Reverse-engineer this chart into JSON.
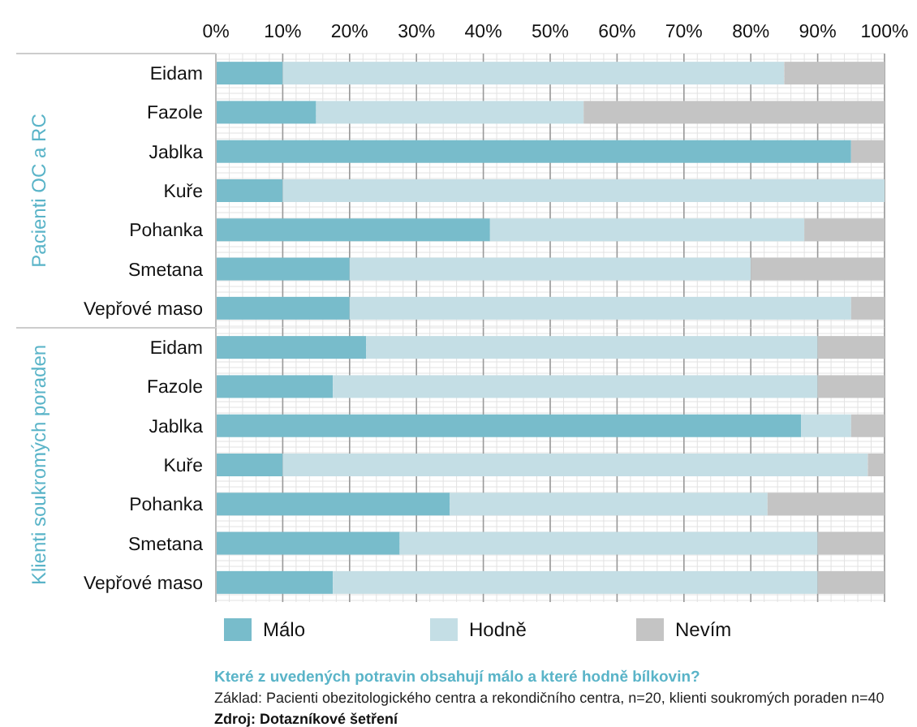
{
  "chart_data": [
    {
      "type": "bar",
      "orientation": "horizontal",
      "stacked": true,
      "ylabel": "Pacienti OC a RC",
      "categories": [
        "Eidam",
        "Fazole",
        "Jablka",
        "Kuře",
        "Pohanka",
        "Smetana",
        "Vepřové maso"
      ],
      "series": [
        {
          "name": "Málo",
          "color": "#78bccb",
          "values": [
            10,
            15,
            95,
            10,
            41,
            20,
            20
          ]
        },
        {
          "name": "Hodně",
          "color": "#c4dee5",
          "values": [
            75,
            40,
            0,
            90,
            47,
            60,
            75
          ]
        },
        {
          "name": "Nevím",
          "color": "#c4c4c4",
          "values": [
            15,
            45,
            5,
            0,
            12,
            20,
            5
          ]
        }
      ],
      "xlim": [
        0,
        100
      ],
      "xticks": [
        {
          "value": 0,
          "label": "0%"
        },
        {
          "value": 10,
          "label": "10%"
        },
        {
          "value": 20,
          "label": "20%"
        },
        {
          "value": 30,
          "label": "30%"
        },
        {
          "value": 40,
          "label": "40%"
        },
        {
          "value": 50,
          "label": "50%"
        },
        {
          "value": 60,
          "label": "60%"
        },
        {
          "value": 70,
          "label": "70%"
        },
        {
          "value": 80,
          "label": "80%"
        },
        {
          "value": 90,
          "label": "90%"
        },
        {
          "value": 100,
          "label": "100%"
        }
      ],
      "grid": "x",
      "legend": "bottom"
    },
    {
      "type": "bar",
      "orientation": "horizontal",
      "stacked": true,
      "ylabel": "Klienti soukromých poraden",
      "categories": [
        "Eidam",
        "Fazole",
        "Jablka",
        "Kuře",
        "Pohanka",
        "Smetana",
        "Vepřové maso"
      ],
      "series": [
        {
          "color": "#78bccb",
          "values": [
            22.5,
            17.5,
            87.5,
            10,
            35,
            27.5,
            17.5
          ]
        },
        {
          "color": "#c4dee5",
          "values": [
            67.5,
            72.5,
            7.5,
            87.5,
            47.5,
            62.5,
            72.5
          ]
        },
        {
          "color": "#c4c4c4",
          "values": [
            10,
            10,
            5,
            2.5,
            17.5,
            10,
            10
          ]
        }
      ],
      "xlim": [
        0,
        100
      ],
      "xticks": [
        {
          "value": 0,
          "label": null
        },
        {
          "value": 10,
          "label": null
        },
        {
          "value": 20,
          "label": null
        },
        {
          "value": 30,
          "label": null
        },
        {
          "value": 40,
          "label": null
        },
        {
          "value": 50,
          "label": null
        },
        {
          "value": 60,
          "label": null
        },
        {
          "value": 70,
          "label": null
        },
        {
          "value": 80,
          "label": null
        },
        {
          "value": 90,
          "label": null
        },
        {
          "value": 100,
          "label": null
        }
      ],
      "grid": "x",
      "tick_labels": "y",
      "annotations": [
        "Které z uvedených potravin obsahují málo a které hodně bílkovin?",
        "Základ: Pacienti obezitologického centra a rekondičního centra, n=20, klienti soukromých poraden n=40",
        "Zdroj: Dotazníkové šetření"
      ]
    }
  ]
}
